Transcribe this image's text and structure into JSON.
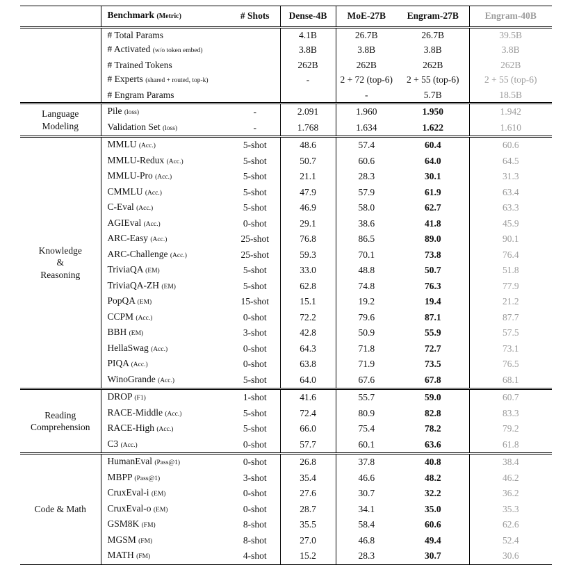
{
  "colors": {
    "text": "#111111",
    "muted": "#9b9b9b",
    "rule": "#000000"
  },
  "header": {
    "benchmark_label": "Benchmark",
    "benchmark_metric": "(Metric)",
    "shots_label": "# Shots",
    "models": [
      "Dense-4B",
      "MoE-27B",
      "Engram-27B",
      "Engram-40B"
    ]
  },
  "sections": [
    {
      "id": "model-config",
      "group_lines": [],
      "bold_engram27": false,
      "rows": [
        {
          "name": "# Total Params",
          "metric": "",
          "shots": "",
          "values": [
            "4.1B",
            "26.7B",
            "26.7B",
            "39.5B"
          ]
        },
        {
          "name": "# Activated",
          "metric": "(w/o token embed)",
          "shots": "",
          "values": [
            "3.8B",
            "3.8B",
            "3.8B",
            "3.8B"
          ]
        },
        {
          "name": "# Trained Tokens",
          "metric": "",
          "shots": "",
          "values": [
            "262B",
            "262B",
            "262B",
            "262B"
          ]
        },
        {
          "name": "# Experts",
          "metric": "(shared + routed, top-k)",
          "shots": "",
          "values": [
            "-",
            "2 + 72 (top-6)",
            "2 + 55 (top-6)",
            "2 + 55 (top-6)"
          ]
        },
        {
          "name": "# Engram Params",
          "metric": "",
          "shots": "",
          "values": [
            "",
            "-",
            "5.7B",
            "18.5B"
          ]
        }
      ]
    },
    {
      "id": "language-modeling",
      "group_lines": [
        "Language",
        "Modeling"
      ],
      "bold_engram27": true,
      "rows": [
        {
          "name": "Pile",
          "metric": "(loss)",
          "shots": "-",
          "values": [
            "2.091",
            "1.960",
            "1.950",
            "1.942"
          ]
        },
        {
          "name": "Validation Set",
          "metric": "(loss)",
          "shots": "-",
          "values": [
            "1.768",
            "1.634",
            "1.622",
            "1.610"
          ]
        }
      ]
    },
    {
      "id": "knowledge-reasoning",
      "group_lines": [
        "Knowledge",
        "&",
        "Reasoning"
      ],
      "bold_engram27": true,
      "rows": [
        {
          "name": "MMLU",
          "metric": "(Acc.)",
          "shots": "5-shot",
          "values": [
            "48.6",
            "57.4",
            "60.4",
            "60.6"
          ]
        },
        {
          "name": "MMLU-Redux",
          "metric": "(Acc.)",
          "shots": "5-shot",
          "values": [
            "50.7",
            "60.6",
            "64.0",
            "64.5"
          ]
        },
        {
          "name": "MMLU-Pro",
          "metric": "(Acc.)",
          "shots": "5-shot",
          "values": [
            "21.1",
            "28.3",
            "30.1",
            "31.3"
          ]
        },
        {
          "name": "CMMLU",
          "metric": "(Acc.)",
          "shots": "5-shot",
          "values": [
            "47.9",
            "57.9",
            "61.9",
            "63.4"
          ]
        },
        {
          "name": "C-Eval",
          "metric": "(Acc.)",
          "shots": "5-shot",
          "values": [
            "46.9",
            "58.0",
            "62.7",
            "63.3"
          ]
        },
        {
          "name": "AGIEval",
          "metric": "(Acc.)",
          "shots": "0-shot",
          "values": [
            "29.1",
            "38.6",
            "41.8",
            "45.9"
          ]
        },
        {
          "name": "ARC-Easy",
          "metric": "(Acc.)",
          "shots": "25-shot",
          "values": [
            "76.8",
            "86.5",
            "89.0",
            "90.1"
          ]
        },
        {
          "name": "ARC-Challenge",
          "metric": "(Acc.)",
          "shots": "25-shot",
          "values": [
            "59.3",
            "70.1",
            "73.8",
            "76.4"
          ]
        },
        {
          "name": "TriviaQA",
          "metric": "(EM)",
          "shots": "5-shot",
          "values": [
            "33.0",
            "48.8",
            "50.7",
            "51.8"
          ]
        },
        {
          "name": "TriviaQA-ZH",
          "metric": "(EM)",
          "shots": "5-shot",
          "values": [
            "62.8",
            "74.8",
            "76.3",
            "77.9"
          ]
        },
        {
          "name": "PopQA",
          "metric": "(EM)",
          "shots": "15-shot",
          "values": [
            "15.1",
            "19.2",
            "19.4",
            "21.2"
          ]
        },
        {
          "name": "CCPM",
          "metric": "(Acc.)",
          "shots": "0-shot",
          "values": [
            "72.2",
            "79.6",
            "87.1",
            "87.7"
          ]
        },
        {
          "name": "BBH",
          "metric": "(EM)",
          "shots": "3-shot",
          "values": [
            "42.8",
            "50.9",
            "55.9",
            "57.5"
          ]
        },
        {
          "name": "HellaSwag",
          "metric": "(Acc.)",
          "shots": "0-shot",
          "values": [
            "64.3",
            "71.8",
            "72.7",
            "73.1"
          ]
        },
        {
          "name": "PIQA",
          "metric": "(Acc.)",
          "shots": "0-shot",
          "values": [
            "63.8",
            "71.9",
            "73.5",
            "76.5"
          ]
        },
        {
          "name": "WinoGrande",
          "metric": "(Acc.)",
          "shots": "5-shot",
          "values": [
            "64.0",
            "67.6",
            "67.8",
            "68.1"
          ]
        }
      ]
    },
    {
      "id": "reading-comprehension",
      "group_lines": [
        "Reading",
        "Comprehension"
      ],
      "bold_engram27": true,
      "rows": [
        {
          "name": "DROP",
          "metric": "(F1)",
          "shots": "1-shot",
          "values": [
            "41.6",
            "55.7",
            "59.0",
            "60.7"
          ]
        },
        {
          "name": "RACE-Middle",
          "metric": "(Acc.)",
          "shots": "5-shot",
          "values": [
            "72.4",
            "80.9",
            "82.8",
            "83.3"
          ]
        },
        {
          "name": "RACE-High",
          "metric": "(Acc.)",
          "shots": "5-shot",
          "values": [
            "66.0",
            "75.4",
            "78.2",
            "79.2"
          ]
        },
        {
          "name": "C3",
          "metric": "(Acc.)",
          "shots": "0-shot",
          "values": [
            "57.7",
            "60.1",
            "63.6",
            "61.8"
          ]
        }
      ]
    },
    {
      "id": "code-math",
      "group_lines": [
        "Code & Math"
      ],
      "bold_engram27": true,
      "rows": [
        {
          "name": "HumanEval",
          "metric": "(Pass@1)",
          "shots": "0-shot",
          "values": [
            "26.8",
            "37.8",
            "40.8",
            "38.4"
          ]
        },
        {
          "name": "MBPP",
          "metric": "(Pass@1)",
          "shots": "3-shot",
          "values": [
            "35.4",
            "46.6",
            "48.2",
            "46.2"
          ]
        },
        {
          "name": "CruxEval-i",
          "metric": "(EM)",
          "shots": "0-shot",
          "values": [
            "27.6",
            "30.7",
            "32.2",
            "36.2"
          ]
        },
        {
          "name": "CruxEval-o",
          "metric": "(EM)",
          "shots": "0-shot",
          "values": [
            "28.7",
            "34.1",
            "35.0",
            "35.3"
          ]
        },
        {
          "name": "GSM8K",
          "metric": "(FM)",
          "shots": "8-shot",
          "values": [
            "35.5",
            "58.4",
            "60.6",
            "62.6"
          ]
        },
        {
          "name": "MGSM",
          "metric": "(FM)",
          "shots": "8-shot",
          "values": [
            "27.0",
            "46.8",
            "49.4",
            "52.4"
          ]
        },
        {
          "name": "MATH",
          "metric": "(FM)",
          "shots": "4-shot",
          "values": [
            "15.2",
            "28.3",
            "30.7",
            "30.6"
          ]
        }
      ]
    }
  ]
}
